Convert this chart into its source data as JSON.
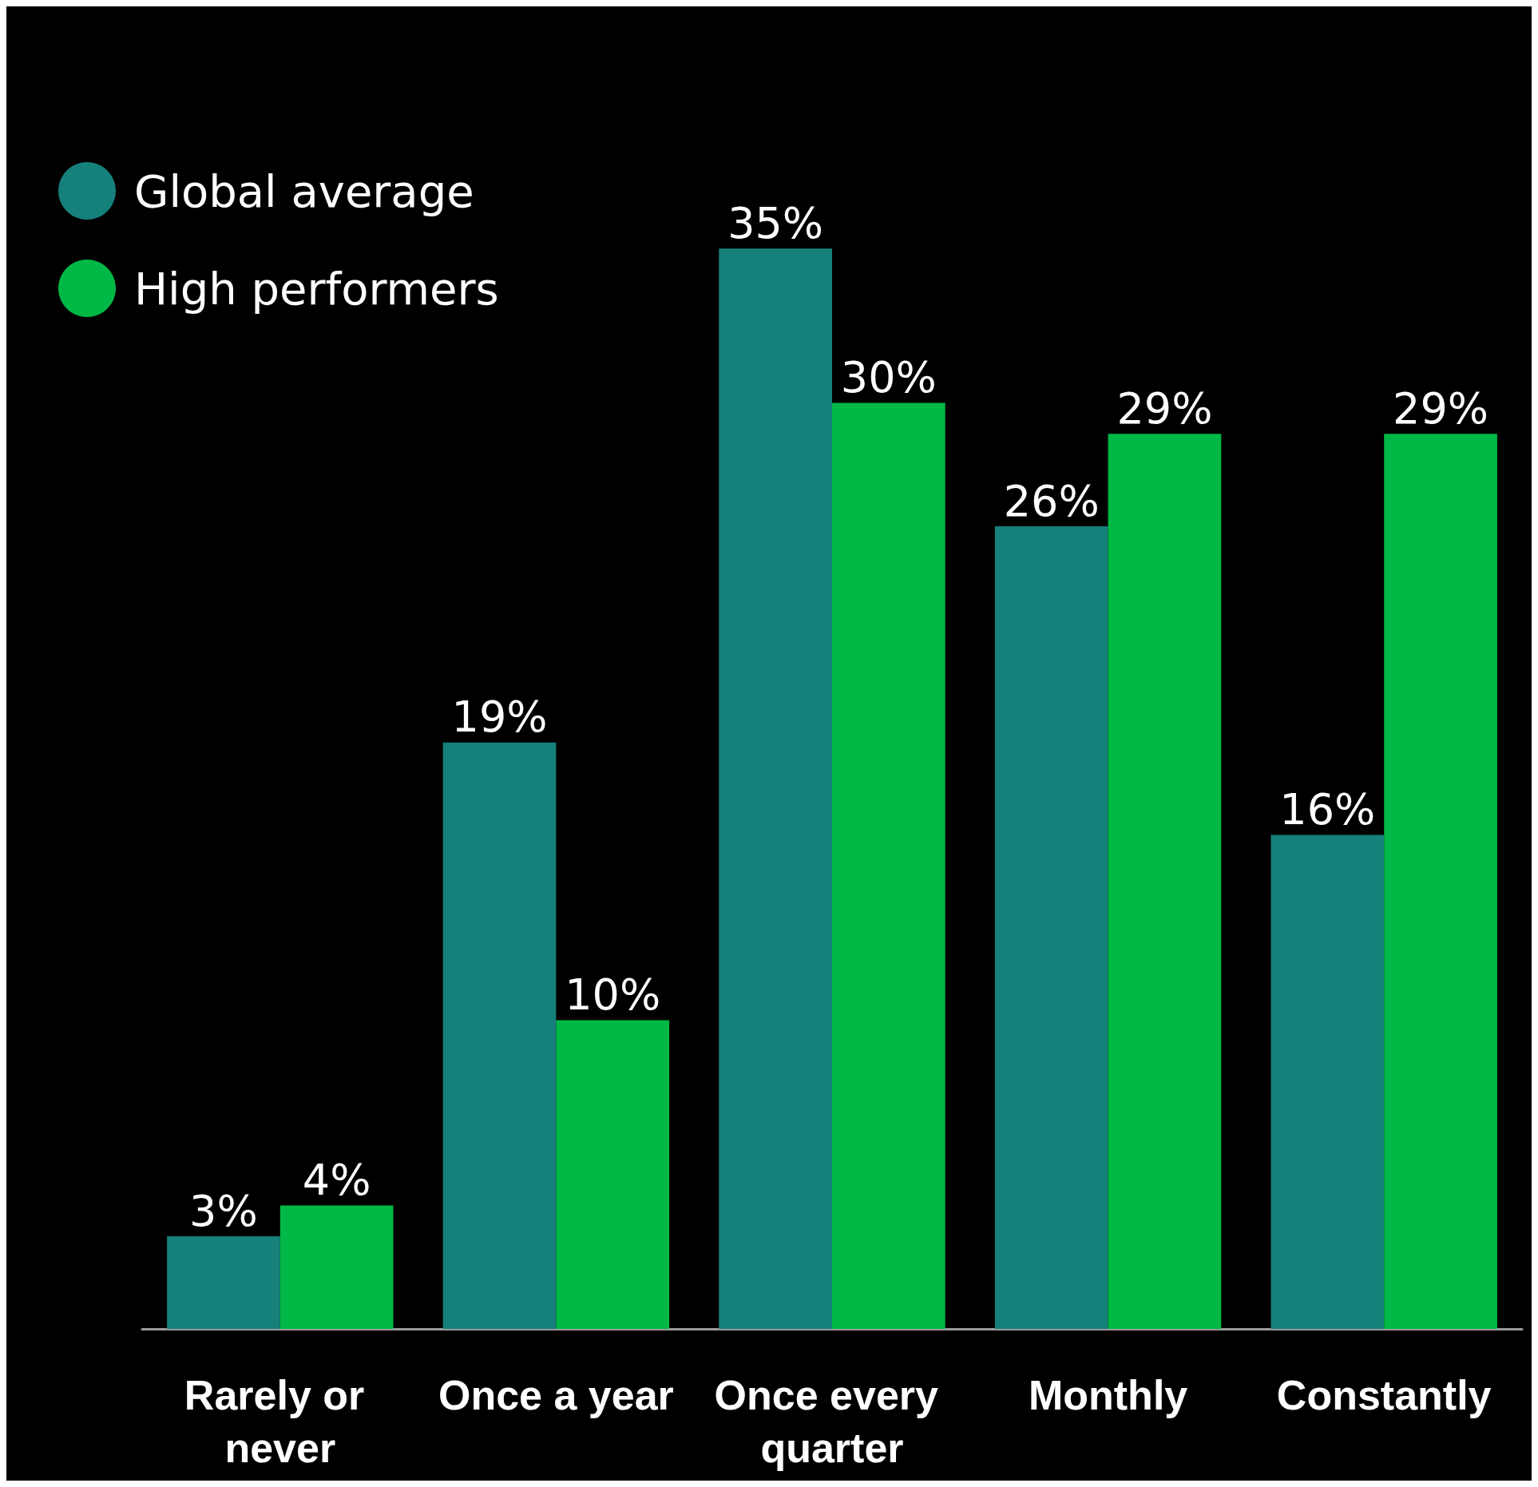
{
  "chart_data": {
    "type": "bar",
    "categories": [
      "Rarely or never",
      "Once a year",
      "Once every quarter",
      "Monthly",
      "Constantly"
    ],
    "series": [
      {
        "name": "Global average",
        "color": "#16807a",
        "values": [
          3,
          19,
          35,
          26,
          16
        ],
        "value_labels": [
          "3%",
          "19%",
          "35%",
          "26%",
          "16%"
        ]
      },
      {
        "name": "High performers",
        "color": "#00b845",
        "values": [
          4,
          10,
          30,
          29,
          29
        ],
        "value_labels": [
          "4%",
          "10%",
          "30%",
          "29%",
          "29%"
        ]
      }
    ],
    "legend": "top left"
  }
}
